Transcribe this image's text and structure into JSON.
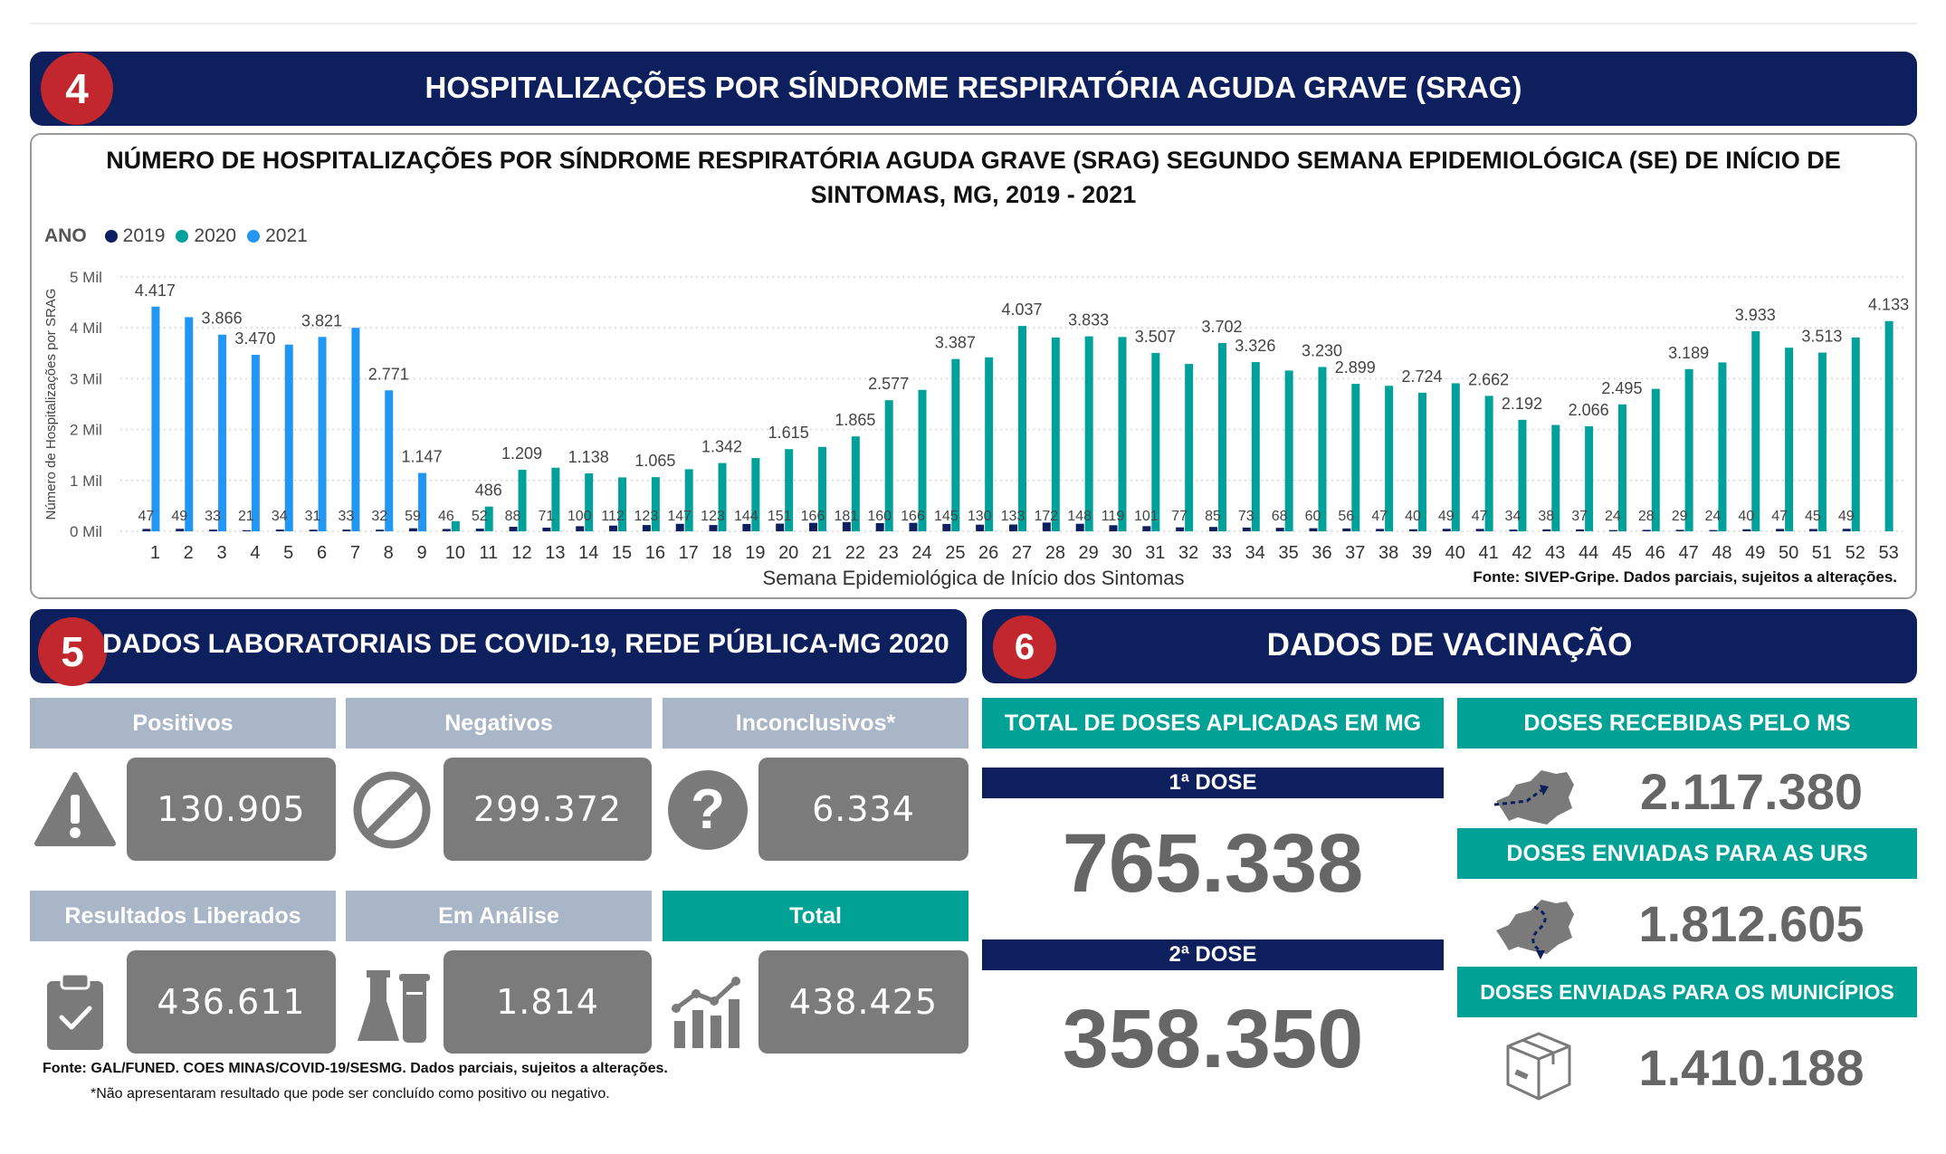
{
  "section4": {
    "number": "4",
    "title": "HOSPITALIZAÇÕES POR SÍNDROME RESPIRATÓRIA AGUDA GRAVE (SRAG)"
  },
  "chart": {
    "title_line1": "NÚMERO DE HOSPITALIZAÇÕES POR SÍNDROME RESPIRATÓRIA AGUDA GRAVE (SRAG) SEGUNDO SEMANA EPIDEMIOLÓGICA (SE) DE INÍCIO DE",
    "title_line2": "SINTOMAS, MG, 2019 - 2021",
    "legend_title": "ANO",
    "source": "Fonte: SIVEP-Gripe. Dados parciais, sujeitos a alterações."
  },
  "chart_data": {
    "type": "bar",
    "xlabel": "Semana Epidemiológica de Início dos Sintomas",
    "ylabel": "Número de Hospitalizações por SRAG",
    "ylim": [
      0,
      5000
    ],
    "yticks": [
      0,
      1000,
      2000,
      3000,
      4000,
      5000
    ],
    "ytick_labels": [
      "0 Mil",
      "1 Mil",
      "2 Mil",
      "3 Mil",
      "4 Mil",
      "5 Mil"
    ],
    "grid": true,
    "legend_position": "top-left",
    "categories": [
      "1",
      "2",
      "3",
      "4",
      "5",
      "6",
      "7",
      "8",
      "9",
      "10",
      "11",
      "12",
      "13",
      "14",
      "15",
      "16",
      "17",
      "18",
      "19",
      "20",
      "21",
      "22",
      "23",
      "24",
      "25",
      "26",
      "27",
      "28",
      "29",
      "30",
      "31",
      "32",
      "33",
      "34",
      "35",
      "36",
      "37",
      "38",
      "39",
      "40",
      "41",
      "42",
      "43",
      "44",
      "45",
      "46",
      "47",
      "48",
      "49",
      "50",
      "51",
      "52",
      "53"
    ],
    "series": [
      {
        "name": "2019",
        "color": "#0d1f5c",
        "values": [
          47,
          49,
          33,
          21,
          34,
          31,
          33,
          32,
          59,
          46,
          52,
          88,
          71,
          100,
          112,
          123,
          147,
          123,
          144,
          151,
          166,
          181,
          160,
          166,
          145,
          130,
          133,
          172,
          148,
          119,
          101,
          77,
          85,
          73,
          68,
          60,
          56,
          47,
          40,
          49,
          47,
          34,
          38,
          37,
          24,
          28,
          29,
          24,
          40,
          47,
          45,
          49,
          null
        ],
        "labels": [
          "47",
          "49",
          "33",
          "21",
          "34",
          "31",
          "33",
          "32",
          "59",
          "46",
          "52",
          "88",
          "71",
          "100",
          "112",
          "123",
          "147",
          "123",
          "144",
          "151",
          "166",
          "181",
          "160",
          "166",
          "145",
          "130",
          "133",
          "172",
          "148",
          "119",
          "101",
          "77",
          "85",
          "73",
          "68",
          "60",
          "56",
          "47",
          "40",
          "49",
          "47",
          "34",
          "38",
          "37",
          "24",
          "28",
          "29",
          "24",
          "40",
          "47",
          "45",
          "49",
          ""
        ]
      },
      {
        "name": "2020",
        "color": "#00a19a",
        "values": [
          50,
          40,
          40,
          35,
          40,
          38,
          36,
          80,
          150,
          200,
          486,
          1209,
          1250,
          1138,
          1060,
          1065,
          1220,
          1342,
          1440,
          1615,
          1660,
          1865,
          2577,
          2780,
          3387,
          3420,
          4037,
          3810,
          3833,
          3820,
          3507,
          3290,
          3702,
          3326,
          3160,
          3230,
          2899,
          2860,
          2724,
          2910,
          2662,
          2192,
          2090,
          2066,
          2495,
          2800,
          3189,
          3320,
          3933,
          3610,
          3513,
          3810,
          4133
        ],
        "labels": [
          "",
          "",
          "",
          "",
          "",
          "",
          "",
          "",
          "",
          "",
          "486",
          "1.209",
          "",
          "1.138",
          "",
          "1.065",
          "",
          "1.342",
          "",
          "1.615",
          "",
          "1.865",
          "2.577",
          "",
          "3.387",
          "",
          "4.037",
          "",
          "3.833",
          "",
          "3.507",
          "",
          "3.702",
          "3.326",
          "",
          "3.230",
          "2.899",
          "",
          "2.724",
          "",
          "2.662",
          "2.192",
          "",
          "2.066",
          "2.495",
          "",
          "3.189",
          "",
          "3.933",
          "",
          "3.513",
          "",
          "4.133"
        ]
      },
      {
        "name": "2021",
        "color": "#2196f3",
        "values": [
          4417,
          4210,
          3866,
          3470,
          3670,
          3821,
          4000,
          2771,
          1147,
          null,
          null,
          null,
          null,
          null,
          null,
          null,
          null,
          null,
          null,
          null,
          null,
          null,
          null,
          null,
          null,
          null,
          null,
          null,
          null,
          null,
          null,
          null,
          null,
          null,
          null,
          null,
          null,
          null,
          null,
          null,
          null,
          null,
          null,
          null,
          null,
          null,
          null,
          null,
          null,
          null,
          null,
          null,
          null
        ],
        "labels": [
          "4.417",
          "",
          "3.866",
          "3.470",
          "",
          "3.821",
          "",
          "2.771",
          "1.147",
          "",
          "",
          "",
          "",
          "",
          "",
          "",
          "",
          "",
          "",
          "",
          "",
          "",
          "",
          "",
          "",
          "",
          "",
          "",
          "",
          "",
          "",
          "",
          "",
          "",
          "",
          "",
          "",
          "",
          "",
          "",
          "",
          "",
          "",
          "",
          "",
          "",
          "",
          "",
          "",
          "",
          "",
          "",
          ""
        ]
      }
    ]
  },
  "section5": {
    "number": "5",
    "title": "DADOS LABORATORIAIS DE COVID-19, REDE PÚBLICA-MG 2020"
  },
  "lab": {
    "positivos": {
      "label": "Positivos",
      "value": "130.905"
    },
    "negativos": {
      "label": "Negativos",
      "value": "299.372"
    },
    "inconclusivos": {
      "label": "Inconclusivos*",
      "value": "6.334"
    },
    "liberados": {
      "label": "Resultados Liberados",
      "value": "436.611"
    },
    "analise": {
      "label": "Em Análise",
      "value": "1.814"
    },
    "total": {
      "label": "Total",
      "value": "438.425"
    },
    "source": "Fonte: GAL/FUNED. COES MINAS/COVID-19/SESMG. Dados parciais, sujeitos a alterações.",
    "note": "*Não apresentaram resultado que pode ser concluído como positivo ou negativo."
  },
  "section6": {
    "number": "6",
    "title": "DADOS DE VACINAÇÃO"
  },
  "vacc": {
    "total_label": "TOTAL DE DOSES APLICADAS EM MG",
    "dose1_label": "1ª DOSE",
    "dose1_value": "765.338",
    "dose2_label": "2ª DOSE",
    "dose2_value": "358.350",
    "recebidas_label": "DOSES RECEBIDAS PELO MS",
    "recebidas_value": "2.117.380",
    "urs_label": "DOSES ENVIADAS PARA AS URS",
    "urs_value": "1.812.605",
    "municipios_label": "DOSES ENVIADAS PARA OS MUNICÍPIOS",
    "municipios_value": "1.410.188"
  },
  "icons": [
    "warning-icon",
    "ban-icon",
    "question-icon",
    "clipboard-check-icon",
    "lab-flask-icon",
    "bar-chart-growth-icon",
    "map-arrow-icon",
    "map-route-icon",
    "box-icon"
  ]
}
